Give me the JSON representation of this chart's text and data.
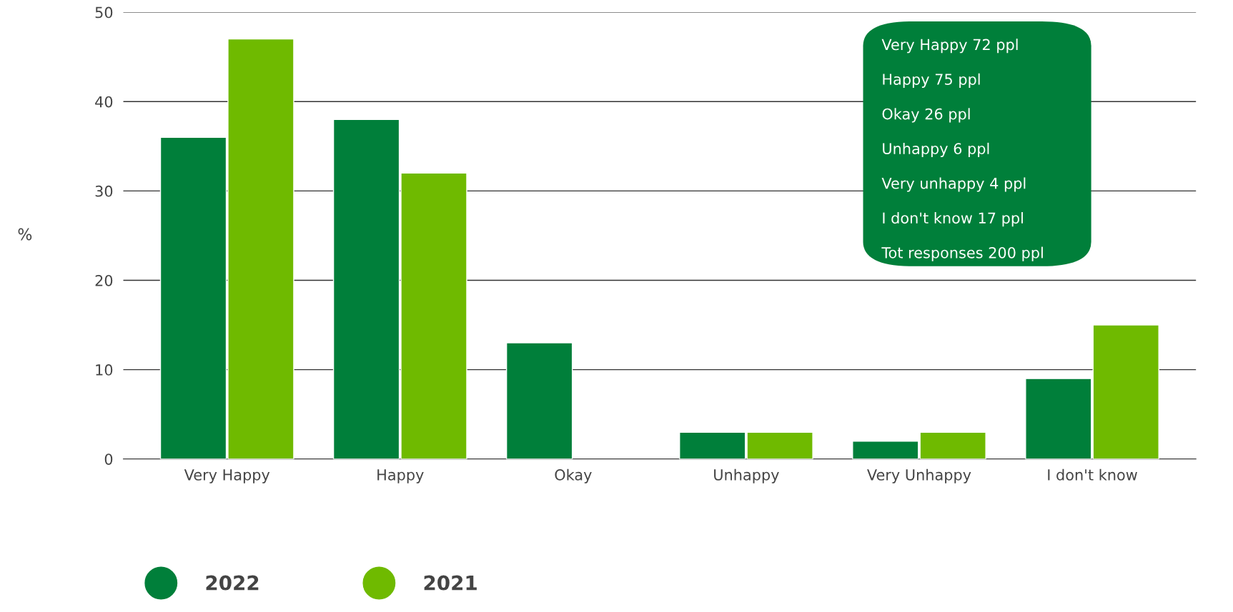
{
  "chart_data": {
    "type": "bar",
    "ylabel": "%",
    "categories": [
      "Very Happy",
      "Happy",
      "Okay",
      "Unhappy",
      "Very Unhappy",
      "I don't know"
    ],
    "series": [
      {
        "name": "2022",
        "color": "#007f3a",
        "values": [
          36,
          38,
          13,
          3,
          2,
          9
        ]
      },
      {
        "name": "2021",
        "color": "#6fba00",
        "values": [
          47,
          32,
          null,
          3,
          3,
          15
        ]
      }
    ],
    "ylim": [
      0,
      50
    ],
    "yticks": [
      0,
      10,
      20,
      30,
      40,
      50
    ],
    "grid": "y",
    "legend": "bottom left",
    "annotations": [
      "Very Happy 72 ppl",
      "Happy 75 ppl",
      "Okay 26 ppl",
      "Unhappy 6 ppl",
      "Very unhappy 4 ppl",
      "I don't know 17 ppl",
      "Tot responses 200 ppl"
    ]
  }
}
